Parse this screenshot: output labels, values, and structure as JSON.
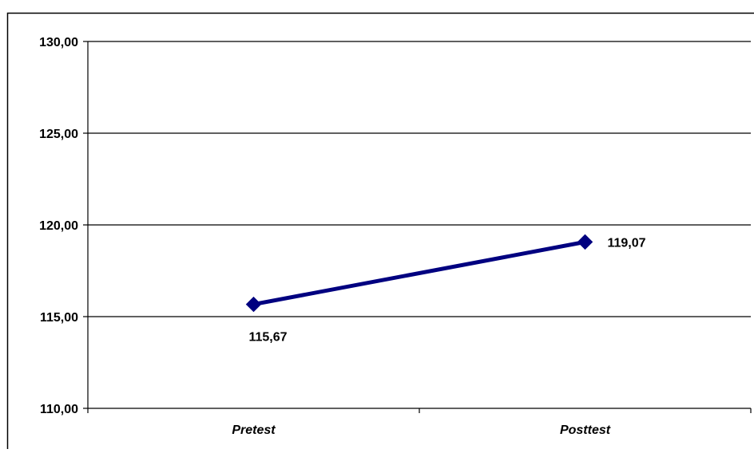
{
  "chart_data": {
    "type": "line",
    "title": "",
    "xlabel": "",
    "ylabel": "",
    "categories": [
      "Pretest",
      "Posttest"
    ],
    "series": [
      {
        "values": [
          115.67,
          119.07
        ],
        "data_labels": [
          "115,67",
          "119,07"
        ],
        "color": "#000080",
        "marker": "diamond"
      }
    ],
    "ylim": [
      110,
      130
    ],
    "y_ticks": [
      110,
      115,
      120,
      125,
      130
    ],
    "y_tick_labels": [
      "110,00",
      "115,00",
      "120,00",
      "125,00",
      "130,00"
    ],
    "grid": "horizontal",
    "legend": "none",
    "colors": {
      "line": "#000080",
      "grid": "#000000",
      "text": "#000000",
      "background": "#ffffff"
    }
  }
}
